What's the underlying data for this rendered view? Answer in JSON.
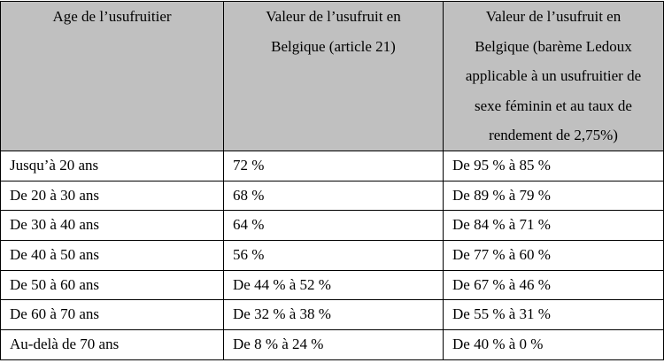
{
  "table": {
    "header": [
      [
        "Age de l’usufruitier"
      ],
      [
        "Valeur de l’usufruit en",
        "Belgique (article 21)"
      ],
      [
        "Valeur de l’usufruit en",
        "Belgique (barème Ledoux",
        "applicable à un usufruitier de",
        "sexe féminin et au taux de",
        "rendement de 2,75%)"
      ]
    ],
    "rows": [
      [
        "Jusqu’à 20 ans",
        "72 %",
        "De 95 % à 85 %"
      ],
      [
        "De 20 à 30 ans",
        "68 %",
        "De 89 % à 79 %"
      ],
      [
        "De 30 à 40 ans",
        "64 %",
        "De 84 % à 71 %"
      ],
      [
        "De 40 à 50 ans",
        "56 %",
        "De 77 % à 60 %"
      ],
      [
        "De 50 à 60 ans",
        "De 44 % à 52 %",
        "De 67 % à 46 %"
      ],
      [
        "De 60 à 70 ans",
        "De 32 % à 38 %",
        "De 55 % à 31 %"
      ],
      [
        "Au-delà de 70 ans",
        "De 8 % à 24 %",
        "De 40 % à 0 %"
      ]
    ]
  }
}
